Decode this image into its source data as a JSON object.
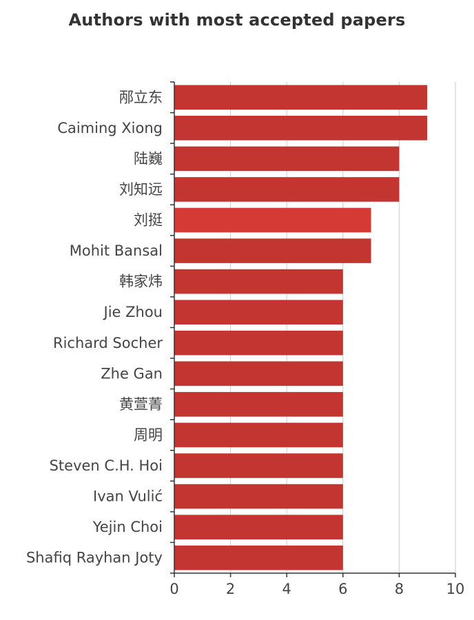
{
  "chart_data": {
    "type": "bar",
    "orientation": "horizontal",
    "title": "Authors with most accepted papers",
    "categories": [
      "邴立东",
      "Caiming Xiong",
      "陆巍",
      "刘知远",
      "刘挺",
      "Mohit Bansal",
      "韩家炜",
      "Jie Zhou",
      "Richard Socher",
      "Zhe Gan",
      "黄萱菁",
      "周明",
      "Steven C.H. Hoi",
      "Ivan Vulić",
      "Yejin Choi",
      "Shafiq Rayhan Joty"
    ],
    "values": [
      9,
      9,
      8,
      8,
      7,
      7,
      6,
      6,
      6,
      6,
      6,
      6,
      6,
      6,
      6,
      6
    ],
    "x_ticks": [
      0,
      2,
      4,
      6,
      8,
      10
    ],
    "xlim": [
      0,
      10
    ],
    "grid": "vertical",
    "colors": {
      "bar": "#c23531",
      "highlight_bar": "#d63a35",
      "axis": "#333333",
      "grid": "#cccccc"
    },
    "highlight_index": 4
  }
}
